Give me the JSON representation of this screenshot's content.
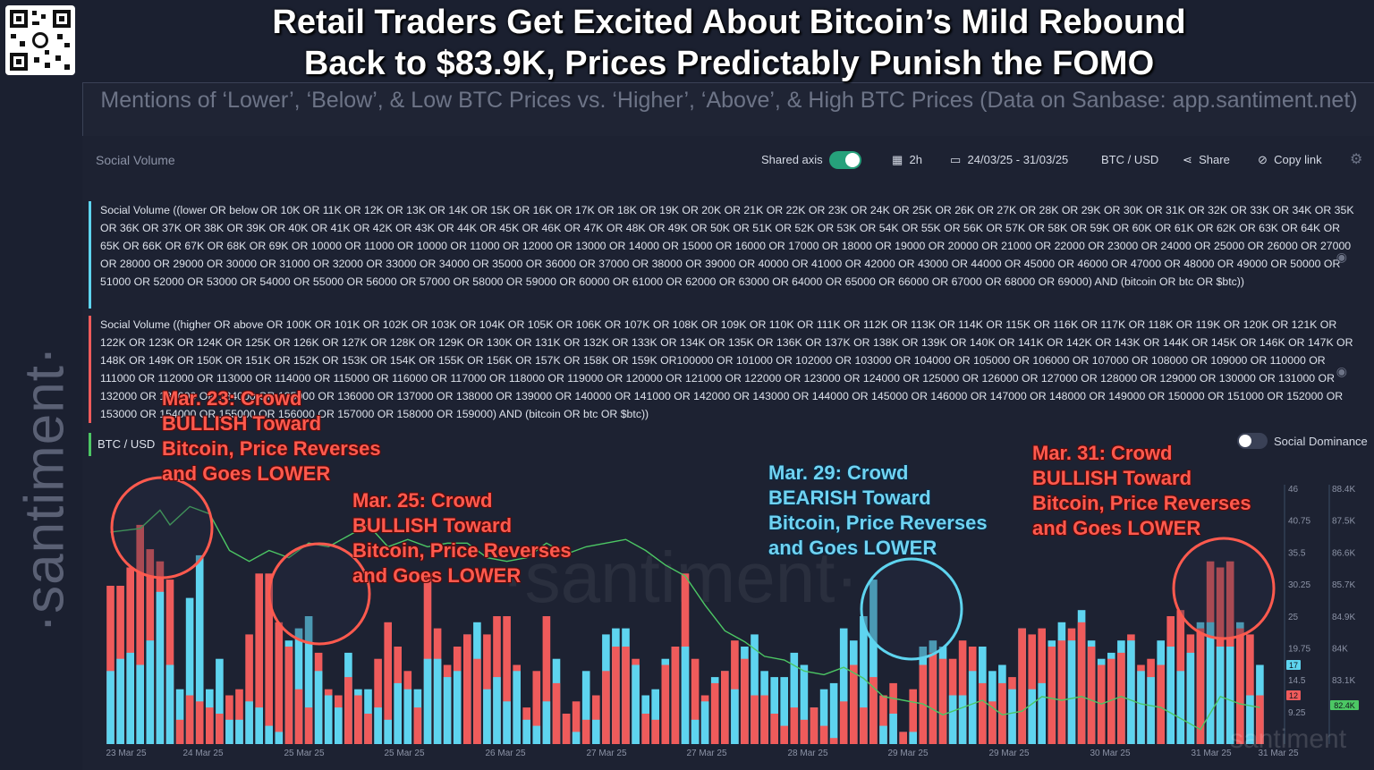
{
  "header": {
    "title_line1": "Retail Traders Get Excited About Bitcoin’s Mild Rebound",
    "title_line2": "Back to $83.9K, Prices Predictably Punish the FOMO",
    "subtitle": "Mentions of ‘Lower’, ‘Below’, & Low BTC Prices vs. ‘Higher’, ‘Above’, & High BTC Prices (Data on Sanbase: app.santiment.net)"
  },
  "brand": {
    "vertical_logo": "·santiment·",
    "watermark": "·santiment·",
    "corner_watermark": "santiment"
  },
  "toolbar": {
    "metric_label": "Social Volume",
    "shared_axis_label": "Shared axis",
    "shared_axis_on": true,
    "interval": "2h",
    "date_range": "24/03/25 - 31/03/25",
    "pair": "BTC / USD",
    "share_label": "Share",
    "copy_link_label": "Copy link"
  },
  "queries": [
    {
      "color": "#5ed4ef",
      "text": "Social Volume ((lower OR below OR 10K OR 11K OR 12K OR 13K OR 14K OR 15K OR 16K OR 17K OR 18K OR 19K OR 20K OR 21K OR 22K OR 23K OR 24K OR 25K OR 26K OR 27K OR 28K OR 29K OR 30K OR 31K OR 32K OR 33K OR 34K OR 35K OR 36K OR 37K OR 38K OR 39K OR 40K OR 41K OR 42K OR 43K OR 44K OR 45K OR 46K OR 47K OR 48K OR 49K OR 50K OR 51K OR 52K OR 53K OR 54K OR 55K OR 56K OR 57K OR 58K OR 59K OR 60K OR 61K OR 62K OR 63K OR 64K OR 65K OR 66K OR 67K OR 68K OR 69K OR 10000 OR 11000 OR 10000 OR 11000 OR 12000 OR 13000 OR 14000 OR 15000 OR 16000 OR 17000 OR 18000 OR 19000 OR 20000 OR 21000 OR 22000 OR 23000 OR 24000 OR 25000 OR 26000 OR 27000 OR 28000 OR 29000 OR 30000 OR 31000 OR 32000 OR 33000 OR 34000 OR 35000 OR 36000 OR 37000 OR 38000 OR 39000 OR 40000 OR 41000 OR 42000 OR 43000 OR 44000 OR 45000 OR 46000 OR 47000 OR 48000 OR 49000 OR 50000 OR 51000 OR 52000 OR 53000 OR 54000 OR 55000 OR 56000 OR 57000 OR 58000 OR 59000 OR 60000 OR 61000 OR 62000 OR 63000 OR 64000 OR 65000 OR 66000 OR 67000 OR 68000 OR 69000) AND (bitcoin OR btc OR $btc))"
    },
    {
      "color": "#ef5b5b",
      "text": "Social Volume ((higher OR above OR 100K OR 101K OR 102K OR 103K OR 104K OR 105K OR 106K OR 107K OR 108K OR 109K OR 110K OR 111K OR 112K OR 113K OR 114K OR 115K OR 116K OR 117K OR 118K OR 119K OR 120K OR 121K OR 122K OR 123K OR 124K OR 125K OR 126K OR 127K OR 128K OR 129K OR 130K OR 131K OR 132K OR 133K OR 134K OR 135K OR 136K OR 137K OR 138K OR 139K OR 140K OR 141K OR 142K OR 143K OR 144K OR 145K OR 146K OR 147K OR 148K OR 149K OR 150K OR 151K OR 152K OR 153K OR 154K OR 155K OR 156K OR 157K OR 158K OR 159K OR100000 OR 101000 OR 102000 OR 103000 OR 104000 OR 105000 OR 106000 OR 107000 OR 108000 OR 109000 OR 110000 OR 111000 OR 112000 OR 113000 OR 114000 OR 115000 OR 116000 OR 117000 OR 118000 OR 119000 OR 120000 OR 121000 OR 122000 OR 123000 OR 124000 OR 125000 OR 126000 OR 127000 OR 128000 OR 129000 OR 130000 OR 131000 OR 132000 OR 133000 OR 134000 OR 135000 OR 136000 OR 137000 OR 138000 OR 139000 OR 140000 OR 141000 OR 142000 OR 143000 OR 144000 OR 145000 OR 146000 OR 147000 OR 148000 OR 149000 OR 150000 OR 151000 OR 152000 OR 153000 OR 154000 OR 155000 OR 156000 OR 157000 OR 158000 OR 159000) AND (bitcoin OR btc OR $btc))"
    }
  ],
  "price_series_label": "BTC / USD",
  "social_dominance_label": "Social Dominance",
  "social_dominance_on": false,
  "annotations": [
    {
      "color": "red",
      "lines": [
        "Mar. 23: Crowd",
        "BULLISH Toward",
        "Bitcoin, Price Reverses",
        "and Goes LOWER"
      ]
    },
    {
      "color": "red",
      "lines": [
        "Mar. 25: Crowd",
        "BULLISH Toward",
        "Bitcoin, Price Reverses",
        "and Goes LOWER"
      ]
    },
    {
      "color": "blue",
      "lines": [
        "Mar. 29: Crowd",
        "BEARISH Toward",
        "Bitcoin, Price Reverses",
        "and Goes LOWER"
      ]
    },
    {
      "color": "red",
      "lines": [
        "Mar. 31: Crowd",
        "BULLISH Toward",
        "Bitcoin, Price Reverses",
        "and Goes LOWER"
      ]
    }
  ],
  "chart_data": {
    "type": "bar",
    "colors": {
      "bearish": "#5ed4ef",
      "bullish": "#ef5b5b",
      "price": "#4cc764"
    },
    "x_tick_labels": [
      "23 Mar 25",
      "24 Mar 25",
      "25 Mar 25",
      "25 Mar 25",
      "26 Mar 25",
      "27 Mar 25",
      "27 Mar 25",
      "28 Mar 25",
      "29 Mar 25",
      "29 Mar 25",
      "30 Mar 25",
      "31 Mar 25",
      "31 Mar 25"
    ],
    "social_volume_axis": {
      "ticks": [
        "46",
        "40.75",
        "35.5",
        "30.25",
        "25",
        "19.75",
        "14.5",
        "9.25"
      ],
      "range": [
        4,
        46
      ]
    },
    "price_axis": {
      "ticks": [
        "88.4K",
        "87.5K",
        "86.6K",
        "85.7K",
        "84.9K",
        "84K",
        "83.1K"
      ],
      "range": [
        81400,
        88400
      ]
    },
    "current_values": {
      "lower_mentions": "17",
      "higher_mentions": "12",
      "price": "82.4K"
    },
    "series": [
      {
        "name": "Lower / below mentions",
        "values": [
          16,
          18,
          19,
          17,
          21,
          29,
          17,
          13,
          28,
          35,
          13,
          18,
          8,
          8,
          11,
          10,
          7,
          6,
          21,
          23,
          25,
          16,
          12,
          10,
          19,
          13,
          13,
          10,
          8,
          14,
          13,
          13,
          18,
          18,
          15,
          16,
          22,
          24,
          13,
          15,
          11,
          16,
          8,
          7,
          11,
          18,
          9,
          6,
          16,
          8,
          22,
          23,
          23,
          17,
          12,
          13,
          18,
          20,
          20,
          8,
          11,
          15,
          16,
          13,
          20,
          22,
          16,
          15,
          15,
          19,
          17,
          10,
          13,
          14,
          23,
          21,
          25,
          31,
          7,
          9,
          6,
          6,
          20,
          21,
          20,
          12,
          12,
          16,
          20,
          16,
          17,
          13,
          23,
          13,
          14,
          21,
          24,
          21,
          26,
          21,
          18,
          19,
          21,
          21,
          16,
          15,
          21,
          20,
          16,
          19,
          24,
          24,
          20,
          20,
          24,
          12,
          17
        ]
      },
      {
        "name": "Higher / above mentions",
        "values": [
          30,
          30,
          33,
          40,
          36,
          34,
          31,
          8,
          12,
          11,
          10,
          9,
          12,
          13,
          22,
          32,
          32,
          24,
          20,
          13,
          10,
          19,
          13,
          12,
          15,
          12,
          9,
          18,
          24,
          20,
          16,
          10,
          32,
          23,
          17,
          20,
          22,
          18,
          22,
          25,
          25,
          17,
          10,
          16,
          25,
          14,
          9,
          11,
          8,
          12,
          16,
          20,
          20,
          18,
          9,
          8,
          17,
          20,
          32,
          18,
          12,
          14,
          16,
          21,
          18,
          12,
          12,
          9,
          7,
          10,
          8,
          10,
          7,
          5,
          11,
          17,
          10,
          15,
          12,
          14,
          6,
          13,
          17,
          19,
          18,
          18,
          21,
          20,
          14,
          11,
          14,
          15,
          23,
          22,
          23,
          20,
          21,
          23,
          24,
          20,
          17,
          18,
          19,
          22,
          17,
          18,
          17,
          25,
          26,
          22,
          23,
          34,
          33,
          34,
          23,
          22,
          12
        ]
      },
      {
        "name": "BTC / USD",
        "x": [
          0,
          3,
          5,
          6,
          8,
          10,
          12,
          14,
          16,
          18,
          20,
          22,
          24,
          26,
          28,
          30,
          32,
          34,
          36,
          38,
          40,
          42,
          44,
          46,
          48,
          50,
          52,
          54,
          56,
          58,
          60,
          62,
          64,
          66,
          68,
          70,
          72,
          74,
          76,
          78,
          80,
          82,
          84,
          86,
          88,
          90,
          92,
          94,
          96,
          98,
          100,
          102,
          104,
          106,
          108,
          110,
          112,
          114,
          116
        ],
        "values": [
          87200,
          87300,
          87800,
          87400,
          87900,
          87700,
          86700,
          86400,
          86700,
          86500,
          86900,
          86800,
          87100,
          87400,
          86800,
          87000,
          86800,
          86900,
          86900,
          86500,
          86400,
          86500,
          86900,
          86600,
          86800,
          86900,
          87000,
          86700,
          86300,
          86000,
          85200,
          84500,
          84200,
          83800,
          83700,
          83400,
          83300,
          83500,
          83200,
          82700,
          82600,
          82500,
          82200,
          82400,
          82600,
          82200,
          82300,
          82700,
          82600,
          82700,
          82500,
          82700,
          82500,
          82400,
          82100,
          81800,
          82700,
          82500,
          82400
        ]
      }
    ]
  }
}
